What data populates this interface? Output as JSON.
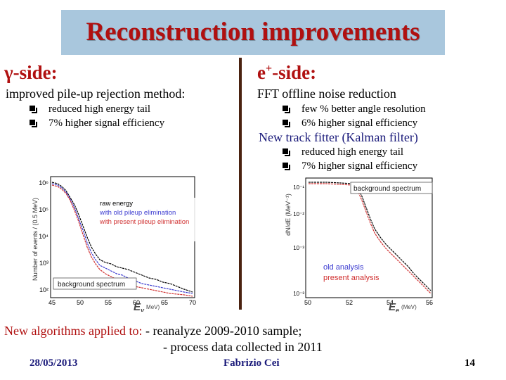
{
  "slide": {
    "title": "Reconstruction improvements",
    "left": {
      "heading": "γ-side:",
      "subheading": "improved pile-up rejection method:",
      "bullets": [
        "reduced high energy tail",
        "7% higher signal efficiency"
      ]
    },
    "right": {
      "heading_base": "e",
      "heading_sup": "+",
      "heading_rest": "-side:",
      "subheading1": "FFT offline noise reduction",
      "bullets1": [
        "few % better angle resolution",
        "6% higher signal efficiency"
      ],
      "subheading2": "New track fitter (Kalman filter)",
      "bullets2": [
        "reduced high energy tail",
        "7% higher signal efficiency"
      ]
    },
    "footer": {
      "lead": "New algorithms applied to:",
      "line1": " - reanalyze 2009-2010 sample;",
      "line2": "- process data collected in 2011",
      "date": "28/05/2013",
      "author": "Fabrizio Cei",
      "page": "14"
    }
  },
  "plots": {
    "left": {
      "ylabel": "Number of events / (0.5 MeV)",
      "yticks": [
        "10⁶",
        "10⁵",
        "10⁴",
        "10³",
        "10²",
        "10"
      ],
      "xticks": [
        "45",
        "50",
        "55",
        "60",
        "65",
        "70"
      ],
      "xlabel_main": "E",
      "xlabel_sub": "γ",
      "xlabel_unit": "MeV)",
      "legend": [
        "raw energy",
        "with old pileup elimination",
        "with present pileup elimination"
      ],
      "legend_colors": [
        "#000000",
        "#3b3bd0",
        "#d03030"
      ],
      "box_label": "background spectrum"
    },
    "right": {
      "ylabel": "dN/dE (MeV⁻¹)",
      "yticks": [
        "10⁻¹",
        "10⁻²",
        "10⁻³",
        "10⁻³"
      ],
      "xticks": [
        "50",
        "52",
        "54",
        "56"
      ],
      "xlabel_main": "E",
      "xlabel_sub": "e",
      "xlabel_unit": "(MeV)",
      "box_label": "background spectrum",
      "legend": [
        "old analysis",
        "present analysis"
      ],
      "legend_colors": [
        "#3b3bd0",
        "#d03030"
      ]
    }
  }
}
